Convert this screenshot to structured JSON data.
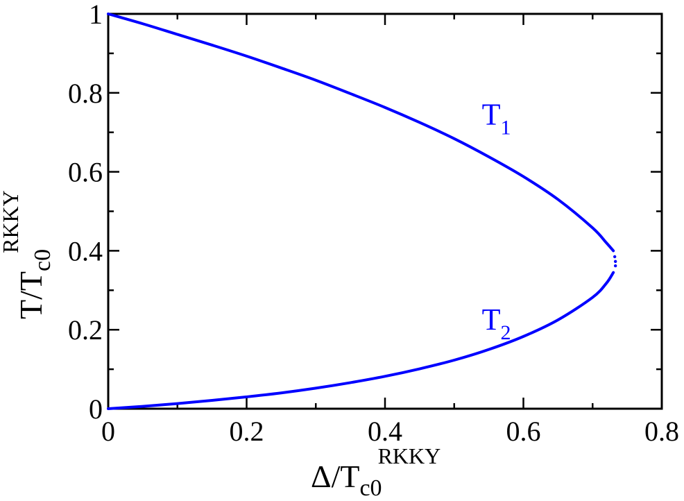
{
  "chart_data": {
    "type": "line",
    "title": "",
    "xlabel": {
      "main": "Δ/T",
      "sub": "c0",
      "sup": "RKKY"
    },
    "ylabel": {
      "main": "T/T",
      "sub": "c0",
      "sup": "RKKY"
    },
    "xlim": [
      0,
      0.8
    ],
    "ylim": [
      0,
      1
    ],
    "xticks": [
      0,
      0.2,
      0.4,
      0.6,
      0.8
    ],
    "xtick_labels": [
      "0",
      "0.2",
      "0.4",
      "0.6",
      "0.8"
    ],
    "yticks": [
      0,
      0.2,
      0.4,
      0.6,
      0.8,
      1
    ],
    "ytick_labels": [
      "0",
      "0.2",
      "0.4",
      "0.6",
      "0.8",
      "1"
    ],
    "grid": false,
    "legend": "none",
    "series": [
      {
        "name": "",
        "label": {
          "main": "T",
          "sub": "1",
          "at": [
            0.54,
            0.72
          ]
        },
        "color": "#0000ff",
        "x": [
          0,
          0.05,
          0.1,
          0.15,
          0.2,
          0.25,
          0.3,
          0.35,
          0.4,
          0.45,
          0.5,
          0.55,
          0.6,
          0.65,
          0.7,
          0.72,
          0.73
        ],
        "y": [
          1.0,
          0.975,
          0.948,
          0.921,
          0.893,
          0.863,
          0.832,
          0.798,
          0.763,
          0.725,
          0.684,
          0.638,
          0.588,
          0.53,
          0.458,
          0.42,
          0.4
        ]
      },
      {
        "name": "",
        "label": {
          "main": "T",
          "sub": "2",
          "at": [
            0.54,
            0.2
          ]
        },
        "color": "#0000ff",
        "x": [
          0,
          0.05,
          0.1,
          0.15,
          0.2,
          0.25,
          0.3,
          0.35,
          0.4,
          0.45,
          0.5,
          0.55,
          0.6,
          0.65,
          0.7,
          0.72,
          0.73
        ],
        "y": [
          0.0,
          0.006,
          0.013,
          0.021,
          0.03,
          0.04,
          0.052,
          0.066,
          0.082,
          0.101,
          0.123,
          0.15,
          0.183,
          0.225,
          0.282,
          0.318,
          0.345
        ]
      }
    ],
    "annotations": [
      {
        "type": "dots",
        "color": "#0000ff",
        "x": [
          0.732,
          0.733,
          0.733
        ],
        "y": [
          0.385,
          0.373,
          0.362
        ]
      }
    ]
  }
}
